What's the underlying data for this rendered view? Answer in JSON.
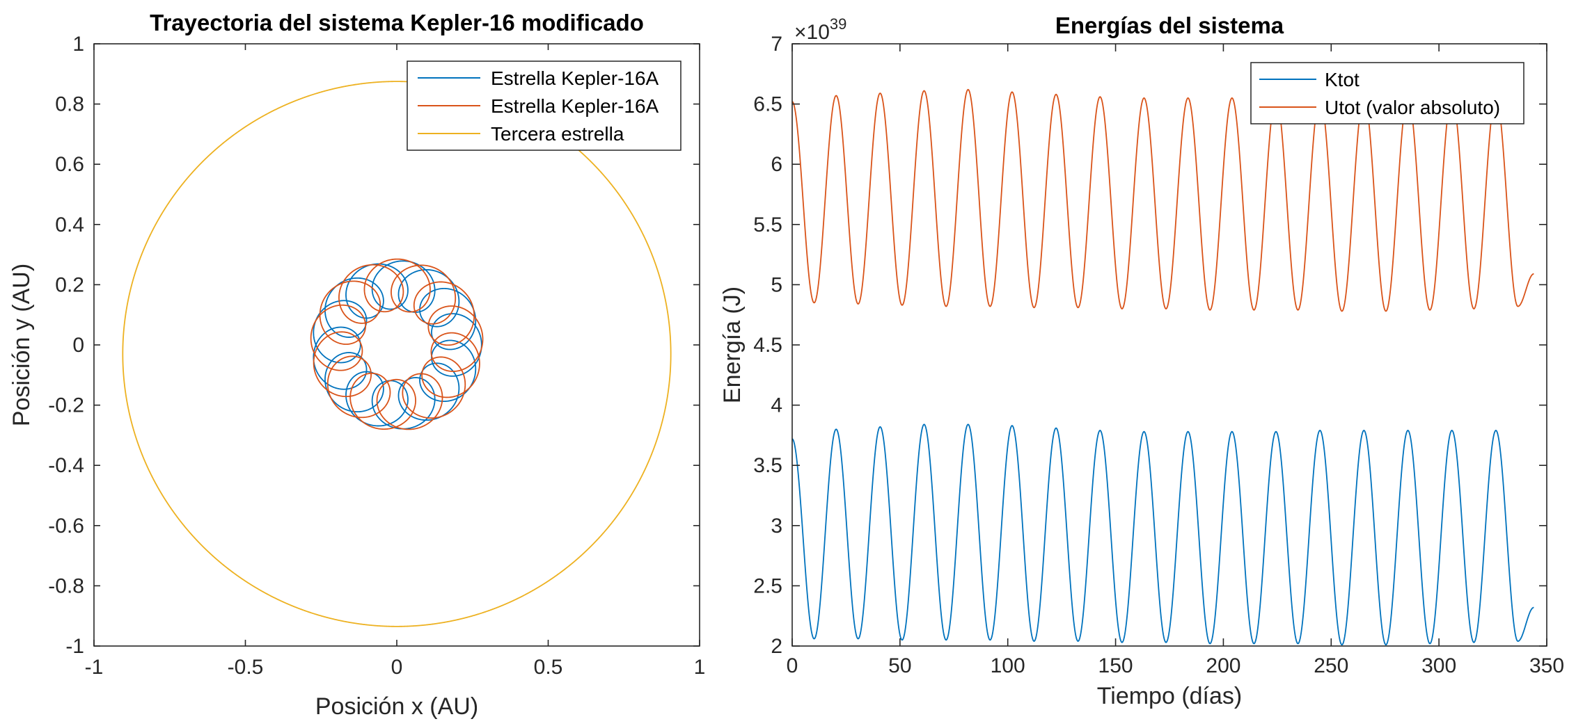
{
  "chart_data": [
    {
      "type": "line",
      "title": "Trayectoria del sistema Kepler-16 modificado",
      "xlabel": "Posición x (AU)",
      "ylabel": "Posición y (AU)",
      "xlim": [
        -1,
        1
      ],
      "ylim": [
        -1,
        1
      ],
      "xticks": [
        -1,
        -0.5,
        0,
        0.5,
        1
      ],
      "xtick_labels": [
        "-1",
        "-0.5",
        "0",
        "0.5",
        "1"
      ],
      "yticks": [
        -1,
        -0.8,
        -0.6,
        -0.4,
        -0.2,
        0,
        0.2,
        0.4,
        0.6,
        0.8,
        1
      ],
      "ytick_labels": [
        "-1",
        "-0.8",
        "-0.6",
        "-0.4",
        "-0.2",
        "0",
        "0.2",
        "0.4",
        "0.6",
        "0.8",
        "1"
      ],
      "grid": false,
      "legend_position": "top-right",
      "series": [
        {
          "name": "Estrella Kepler-16A",
          "color": "#0072BD",
          "orbit": {
            "center_x": 0.0,
            "center_y": 0.0,
            "guiding_radius": 0.2,
            "loop_radius": 0.08,
            "loops": 14,
            "phase": 0.0
          }
        },
        {
          "name": "Estrella Kepler-16A",
          "color": "#D95319",
          "orbit": {
            "center_x": 0.0,
            "center_y": 0.0,
            "guiding_radius": 0.2,
            "loop_radius": 0.085,
            "loops": 14,
            "phase": 0.25
          }
        },
        {
          "name": "Tercera estrella",
          "color": "#EDB120",
          "orbit": {
            "center_x": 0.0,
            "center_y": -0.03,
            "radius": 0.905
          }
        }
      ]
    },
    {
      "type": "line",
      "title": "Energías del sistema",
      "xlabel": "Tiempo (días)",
      "ylabel": "Energía (J)",
      "y_exponent_label": "×10",
      "y_exponent_power": "39",
      "xlim": [
        0,
        350
      ],
      "ylim": [
        2,
        7
      ],
      "xticks": [
        0,
        50,
        100,
        150,
        200,
        250,
        300,
        350
      ],
      "xtick_labels": [
        "0",
        "50",
        "100",
        "150",
        "200",
        "250",
        "300",
        "350"
      ],
      "yticks": [
        2,
        2.5,
        3,
        3.5,
        4,
        4.5,
        5,
        5.5,
        6,
        6.5,
        7
      ],
      "ytick_labels": [
        "2",
        "2.5",
        "3",
        "3.5",
        "4",
        "4.5",
        "5",
        "5.5",
        "6",
        "6.5",
        "7"
      ],
      "grid": false,
      "legend_position": "top-right",
      "x": [
        0,
        10.2,
        20.4,
        30.6,
        40.8,
        51.0,
        61.2,
        71.4,
        81.6,
        91.8,
        102.0,
        112.2,
        122.4,
        132.6,
        142.8,
        153.0,
        163.2,
        173.4,
        183.6,
        193.8,
        204.0,
        214.2,
        224.4,
        234.6,
        244.8,
        255.0,
        265.2,
        275.4,
        285.6,
        295.8,
        306.0,
        316.2,
        326.4,
        336.6,
        344
      ],
      "series": [
        {
          "name": "Ktot",
          "color": "#0072BD",
          "values": [
            3.72,
            2.06,
            3.8,
            2.06,
            3.82,
            2.05,
            3.84,
            2.05,
            3.84,
            2.05,
            3.83,
            2.04,
            3.81,
            2.04,
            3.79,
            2.03,
            3.78,
            2.03,
            3.78,
            2.02,
            3.78,
            2.02,
            3.78,
            2.02,
            3.79,
            2.01,
            3.79,
            2.01,
            3.79,
            2.02,
            3.79,
            2.03,
            3.79,
            2.04,
            2.32
          ]
        },
        {
          "name": "Utot (valor absoluto)",
          "color": "#D95319",
          "values": [
            6.52,
            4.85,
            6.57,
            4.84,
            6.59,
            4.83,
            6.61,
            4.82,
            6.62,
            4.82,
            6.6,
            4.81,
            6.58,
            4.81,
            6.56,
            4.8,
            6.55,
            4.8,
            6.55,
            4.79,
            6.55,
            4.79,
            6.56,
            4.79,
            6.56,
            4.78,
            6.56,
            4.78,
            6.56,
            4.79,
            6.56,
            4.8,
            6.56,
            4.82,
            5.09
          ]
        }
      ]
    }
  ]
}
